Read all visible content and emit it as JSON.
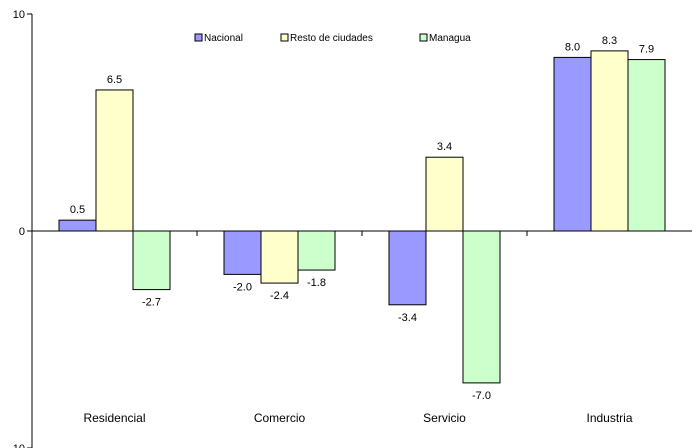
{
  "chart_data": {
    "type": "bar",
    "categories": [
      "Residencial",
      "Comercio",
      "Servicio",
      "Industria"
    ],
    "series": [
      {
        "name": "Nacional",
        "color": "#9999ff",
        "values": [
          0.5,
          -2.0,
          -3.4,
          8.0
        ],
        "labels": [
          "0.5",
          "-2.0",
          "-3.4",
          "8.0"
        ]
      },
      {
        "name": "Resto de ciudades",
        "color": "#ffffcc",
        "values": [
          6.5,
          -2.4,
          3.4,
          8.3
        ],
        "labels": [
          "6.5",
          "-2.4",
          "3.4",
          "8.3"
        ]
      },
      {
        "name": "Managua",
        "color": "#ccffcc",
        "values": [
          -2.7,
          -1.8,
          -7.0,
          7.9
        ],
        "labels": [
          "-2.7",
          "-1.8",
          "-7.0",
          "7.9"
        ]
      }
    ],
    "ylim": [
      -10,
      10
    ],
    "yticks": [
      "10",
      "0",
      "-10"
    ],
    "grid": false,
    "legend_position": "top-center",
    "title": "",
    "xlabel": "",
    "ylabel": ""
  }
}
